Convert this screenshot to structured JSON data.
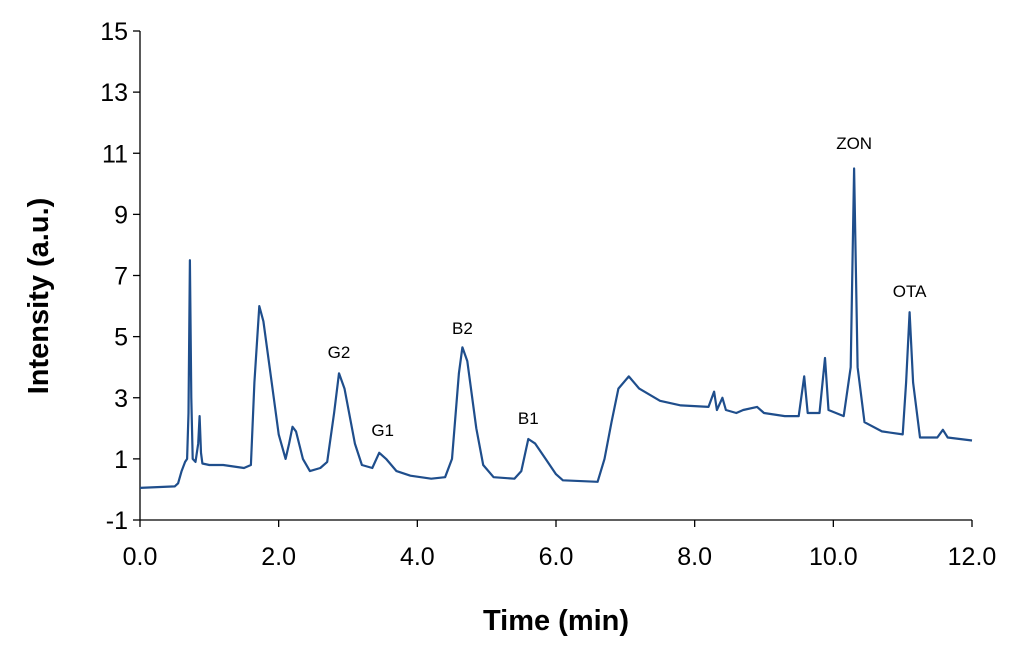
{
  "chart_data": {
    "type": "line",
    "x_label": "Time (min)",
    "y_label": "Intensity (a.u.)",
    "xlim": [
      0,
      12
    ],
    "ylim": [
      -1,
      15
    ],
    "xticks": [
      {
        "value": 0,
        "label": "0.0"
      },
      {
        "value": 2,
        "label": "2.0"
      },
      {
        "value": 4,
        "label": "4.0"
      },
      {
        "value": 6,
        "label": "6.0"
      },
      {
        "value": 8,
        "label": "8.0"
      },
      {
        "value": 10,
        "label": "10.0"
      },
      {
        "value": 12,
        "label": "12.0"
      }
    ],
    "yticks": [
      -1,
      1,
      3,
      5,
      7,
      9,
      11,
      13,
      15
    ],
    "x": [
      0.0,
      0.5,
      0.55,
      0.6,
      0.65,
      0.68,
      0.7,
      0.72,
      0.74,
      0.76,
      0.8,
      0.84,
      0.86,
      0.88,
      0.9,
      1.0,
      1.2,
      1.5,
      1.6,
      1.65,
      1.72,
      1.78,
      1.9,
      2.0,
      2.1,
      2.15,
      2.2,
      2.25,
      2.35,
      2.45,
      2.6,
      2.7,
      2.8,
      2.87,
      2.95,
      3.1,
      3.2,
      3.35,
      3.45,
      3.55,
      3.7,
      3.9,
      4.2,
      4.4,
      4.5,
      4.6,
      4.65,
      4.72,
      4.85,
      4.95,
      5.1,
      5.4,
      5.5,
      5.6,
      5.7,
      5.85,
      6.0,
      6.1,
      6.6,
      6.7,
      6.8,
      6.9,
      7.05,
      7.2,
      7.5,
      7.8,
      8.2,
      8.28,
      8.32,
      8.4,
      8.45,
      8.6,
      8.7,
      8.9,
      9.0,
      9.3,
      9.5,
      9.58,
      9.63,
      9.8,
      9.88,
      9.93,
      10.15,
      10.25,
      10.3,
      10.35,
      10.45,
      10.7,
      11.0,
      11.05,
      11.1,
      11.15,
      11.25,
      11.5,
      11.58,
      11.65,
      12.0
    ],
    "series": [
      {
        "color": "#1f4e8c",
        "values": [
          0.05,
          0.1,
          0.2,
          0.6,
          0.9,
          1.0,
          2.5,
          7.5,
          3.0,
          1.0,
          0.9,
          1.5,
          2.4,
          1.2,
          0.85,
          0.8,
          0.8,
          0.7,
          0.8,
          3.5,
          6.0,
          5.5,
          3.5,
          1.8,
          1.0,
          1.5,
          2.05,
          1.9,
          1.0,
          0.6,
          0.7,
          0.9,
          2.5,
          3.8,
          3.3,
          1.5,
          0.8,
          0.7,
          1.2,
          1.0,
          0.6,
          0.45,
          0.35,
          0.4,
          1.0,
          3.8,
          4.65,
          4.2,
          2.0,
          0.8,
          0.4,
          0.35,
          0.6,
          1.65,
          1.5,
          1.0,
          0.5,
          0.3,
          0.25,
          1.0,
          2.2,
          3.3,
          3.7,
          3.3,
          2.9,
          2.75,
          2.7,
          3.2,
          2.6,
          3.0,
          2.6,
          2.5,
          2.6,
          2.7,
          2.5,
          2.4,
          2.4,
          3.7,
          2.5,
          2.5,
          4.3,
          2.6,
          2.4,
          4.0,
          10.5,
          4.0,
          2.2,
          1.9,
          1.8,
          3.5,
          5.8,
          3.5,
          1.7,
          1.7,
          1.95,
          1.7,
          1.6
        ]
      }
    ],
    "annotations": [
      {
        "text": "G2",
        "x": 2.87,
        "y": 4.5
      },
      {
        "text": "G1",
        "x": 3.5,
        "y": 1.95
      },
      {
        "text": "B2",
        "x": 4.65,
        "y": 5.28
      },
      {
        "text": "B1",
        "x": 5.6,
        "y": 2.34
      },
      {
        "text": "ZON",
        "x": 10.3,
        "y": 11.34
      },
      {
        "text": "OTA",
        "x": 11.1,
        "y": 6.49
      }
    ]
  }
}
